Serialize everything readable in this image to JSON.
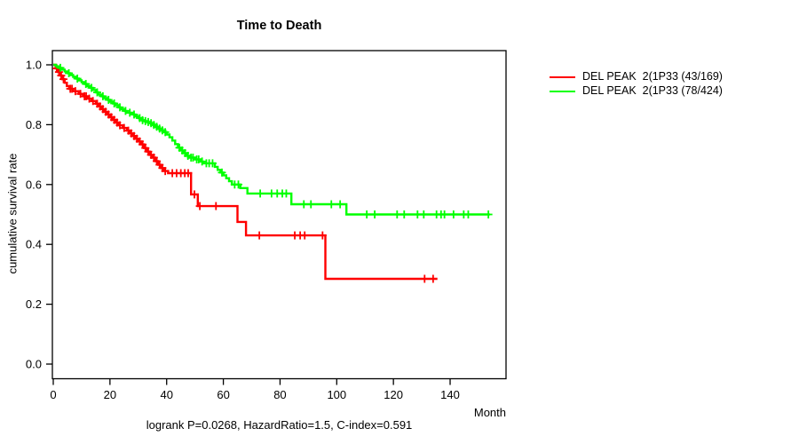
{
  "title": "Time to Death",
  "caption": "logrank P=0.0268, HazardRatio=1.5, C-index=0.591",
  "colors": {
    "series1": "#ff0000",
    "series2": "#00ff00",
    "axis": "#000000",
    "background": "#ffffff"
  },
  "chart_data": {
    "type": "line",
    "subtype": "kaplan-meier-step",
    "title": "Time to Death",
    "xlabel": "Month",
    "ylabel": "cumulative survival rate",
    "caption": "logrank P=0.0268, HazardRatio=1.5, C-index=0.591",
    "xlim": [
      0,
      160
    ],
    "ylim": [
      0.0,
      1.0
    ],
    "grid": false,
    "legend_position": "right-outside",
    "x_ticks": [
      {
        "v": 0,
        "label": "0"
      },
      {
        "v": 20,
        "label": "20"
      },
      {
        "v": 40,
        "label": "40"
      },
      {
        "v": 60,
        "label": "60"
      },
      {
        "v": 80,
        "label": "80"
      },
      {
        "v": 100,
        "label": "100"
      },
      {
        "v": 120,
        "label": "120"
      },
      {
        "v": 140,
        "label": "140"
      }
    ],
    "y_ticks": [
      {
        "v": 0.0,
        "label": "0.0"
      },
      {
        "v": 0.2,
        "label": "0.2"
      },
      {
        "v": 0.4,
        "label": "0.4"
      },
      {
        "v": 0.6,
        "label": "0.6"
      },
      {
        "v": 0.8,
        "label": "0.8"
      },
      {
        "v": 1.0,
        "label": "1.0"
      }
    ],
    "series": [
      {
        "name": "DEL PEAK  2(1P33 (43/169)",
        "color": "#ff0000",
        "end_month": 135.5,
        "steps": [
          [
            0,
            1.0
          ],
          [
            0.8,
            0.988
          ],
          [
            1.6,
            0.976
          ],
          [
            2.4,
            0.964
          ],
          [
            3.2,
            0.952
          ],
          [
            4,
            0.94
          ],
          [
            4.8,
            0.929
          ],
          [
            5.6,
            0.92
          ],
          [
            7,
            0.912
          ],
          [
            9,
            0.903
          ],
          [
            10.5,
            0.895
          ],
          [
            12,
            0.887
          ],
          [
            13.5,
            0.879
          ],
          [
            15,
            0.87
          ],
          [
            16,
            0.861
          ],
          [
            17,
            0.852
          ],
          [
            18,
            0.843
          ],
          [
            19,
            0.834
          ],
          [
            20,
            0.825
          ],
          [
            21,
            0.816
          ],
          [
            22,
            0.807
          ],
          [
            23,
            0.798
          ],
          [
            24.5,
            0.789
          ],
          [
            26,
            0.78
          ],
          [
            27,
            0.771
          ],
          [
            28,
            0.762
          ],
          [
            29,
            0.753
          ],
          [
            30,
            0.744
          ],
          [
            31,
            0.734
          ],
          [
            32,
            0.722
          ],
          [
            33,
            0.71
          ],
          [
            34,
            0.699
          ],
          [
            35,
            0.69
          ],
          [
            36,
            0.678
          ],
          [
            37,
            0.666
          ],
          [
            38,
            0.655
          ],
          [
            39,
            0.645
          ],
          [
            40.5,
            0.638
          ],
          [
            48.6,
            0.567
          ],
          [
            51,
            0.528
          ],
          [
            65,
            0.475
          ],
          [
            68,
            0.43
          ],
          [
            96,
            0.285
          ]
        ],
        "censors": [
          [
            1.2,
            0.988
          ],
          [
            2,
            0.976
          ],
          [
            2.8,
            0.964
          ],
          [
            3.6,
            0.952
          ],
          [
            6,
            0.92
          ],
          [
            6.6,
            0.92
          ],
          [
            7.8,
            0.912
          ],
          [
            9.6,
            0.903
          ],
          [
            11,
            0.895
          ],
          [
            11.6,
            0.895
          ],
          [
            12.7,
            0.887
          ],
          [
            14,
            0.879
          ],
          [
            15.5,
            0.87
          ],
          [
            16.5,
            0.861
          ],
          [
            17.5,
            0.852
          ],
          [
            18.5,
            0.843
          ],
          [
            19.5,
            0.834
          ],
          [
            20.5,
            0.825
          ],
          [
            21.5,
            0.816
          ],
          [
            22.5,
            0.807
          ],
          [
            23.5,
            0.798
          ],
          [
            25,
            0.789
          ],
          [
            26.5,
            0.78
          ],
          [
            27.5,
            0.771
          ],
          [
            28.5,
            0.762
          ],
          [
            29.5,
            0.753
          ],
          [
            30.5,
            0.744
          ],
          [
            31.5,
            0.734
          ],
          [
            32.5,
            0.722
          ],
          [
            33.5,
            0.71
          ],
          [
            34.5,
            0.699
          ],
          [
            35.5,
            0.69
          ],
          [
            36.5,
            0.678
          ],
          [
            37.5,
            0.666
          ],
          [
            38.5,
            0.655
          ],
          [
            39.5,
            0.645
          ],
          [
            42,
            0.638
          ],
          [
            43.5,
            0.638
          ],
          [
            45,
            0.638
          ],
          [
            46.4,
            0.638
          ],
          [
            47.6,
            0.638
          ],
          [
            49.8,
            0.567
          ],
          [
            51.7,
            0.528
          ],
          [
            57.4,
            0.528
          ],
          [
            72.7,
            0.43
          ],
          [
            85.2,
            0.43
          ],
          [
            87.1,
            0.43
          ],
          [
            88.7,
            0.43
          ],
          [
            95,
            0.43
          ],
          [
            131,
            0.285
          ],
          [
            134,
            0.285
          ]
        ]
      },
      {
        "name": "DEL PEAK  2(1P33 (78/424)",
        "color": "#00ff00",
        "end_month": 154,
        "steps": [
          [
            0,
            1.0
          ],
          [
            1,
            0.995
          ],
          [
            2,
            0.99
          ],
          [
            3,
            0.984
          ],
          [
            4,
            0.978
          ],
          [
            5,
            0.972
          ],
          [
            6,
            0.966
          ],
          [
            7,
            0.96
          ],
          [
            8,
            0.954
          ],
          [
            9,
            0.948
          ],
          [
            10,
            0.942
          ],
          [
            11,
            0.936
          ],
          [
            12,
            0.929
          ],
          [
            13,
            0.923
          ],
          [
            14,
            0.916
          ],
          [
            15,
            0.908
          ],
          [
            16,
            0.901
          ],
          [
            17,
            0.895
          ],
          [
            18,
            0.889
          ],
          [
            19,
            0.883
          ],
          [
            20,
            0.877
          ],
          [
            21,
            0.871
          ],
          [
            22,
            0.865
          ],
          [
            23,
            0.858
          ],
          [
            24,
            0.852
          ],
          [
            25,
            0.846
          ],
          [
            26,
            0.84
          ],
          [
            28,
            0.834
          ],
          [
            29,
            0.828
          ],
          [
            30,
            0.822
          ],
          [
            31,
            0.815
          ],
          [
            32,
            0.812
          ],
          [
            33,
            0.809
          ],
          [
            34,
            0.805
          ],
          [
            35,
            0.799
          ],
          [
            36,
            0.793
          ],
          [
            37,
            0.787
          ],
          [
            38,
            0.781
          ],
          [
            39,
            0.775
          ],
          [
            40,
            0.767
          ],
          [
            41,
            0.758
          ],
          [
            42,
            0.747
          ],
          [
            43,
            0.735
          ],
          [
            44,
            0.723
          ],
          [
            45,
            0.714
          ],
          [
            46,
            0.705
          ],
          [
            47,
            0.696
          ],
          [
            48,
            0.69
          ],
          [
            50,
            0.684
          ],
          [
            52,
            0.677
          ],
          [
            53,
            0.671
          ],
          [
            57,
            0.659
          ],
          [
            58,
            0.649
          ],
          [
            59,
            0.64
          ],
          [
            60,
            0.631
          ],
          [
            61,
            0.621
          ],
          [
            62,
            0.611
          ],
          [
            63,
            0.6
          ],
          [
            66,
            0.588
          ],
          [
            68.5,
            0.57
          ],
          [
            84,
            0.534
          ],
          [
            103.4,
            0.5
          ]
        ],
        "censors": [
          [
            2.5,
            0.99
          ],
          [
            5.5,
            0.972
          ],
          [
            8.5,
            0.954
          ],
          [
            11.5,
            0.936
          ],
          [
            13.5,
            0.923
          ],
          [
            15.5,
            0.908
          ],
          [
            17.5,
            0.895
          ],
          [
            19.5,
            0.883
          ],
          [
            21.5,
            0.871
          ],
          [
            23.5,
            0.858
          ],
          [
            25.5,
            0.846
          ],
          [
            27,
            0.84
          ],
          [
            28.5,
            0.834
          ],
          [
            30.5,
            0.822
          ],
          [
            31.5,
            0.815
          ],
          [
            32.5,
            0.812
          ],
          [
            33.5,
            0.809
          ],
          [
            34.5,
            0.805
          ],
          [
            35.5,
            0.799
          ],
          [
            36.5,
            0.793
          ],
          [
            37.5,
            0.787
          ],
          [
            38.5,
            0.781
          ],
          [
            39.5,
            0.775
          ],
          [
            44.5,
            0.723
          ],
          [
            45.5,
            0.714
          ],
          [
            46.5,
            0.705
          ],
          [
            47.5,
            0.696
          ],
          [
            48.6,
            0.69
          ],
          [
            49.3,
            0.69
          ],
          [
            50.6,
            0.684
          ],
          [
            51.3,
            0.684
          ],
          [
            52.5,
            0.677
          ],
          [
            54,
            0.671
          ],
          [
            55,
            0.671
          ],
          [
            56.2,
            0.671
          ],
          [
            59.5,
            0.64
          ],
          [
            64,
            0.6
          ],
          [
            65.3,
            0.6
          ],
          [
            73,
            0.57
          ],
          [
            77,
            0.57
          ],
          [
            79,
            0.57
          ],
          [
            80.8,
            0.57
          ],
          [
            82.2,
            0.57
          ],
          [
            88.4,
            0.534
          ],
          [
            90.9,
            0.534
          ],
          [
            98.1,
            0.534
          ],
          [
            101.2,
            0.534
          ],
          [
            110.6,
            0.5
          ],
          [
            113.4,
            0.5
          ],
          [
            121.3,
            0.5
          ],
          [
            123.8,
            0.5
          ],
          [
            128.5,
            0.5
          ],
          [
            130.7,
            0.5
          ],
          [
            135.2,
            0.5
          ],
          [
            136.8,
            0.5
          ],
          [
            138,
            0.5
          ],
          [
            141.2,
            0.5
          ],
          [
            144.8,
            0.5
          ],
          [
            146.4,
            0.5
          ],
          [
            153.5,
            0.5
          ]
        ]
      }
    ]
  }
}
